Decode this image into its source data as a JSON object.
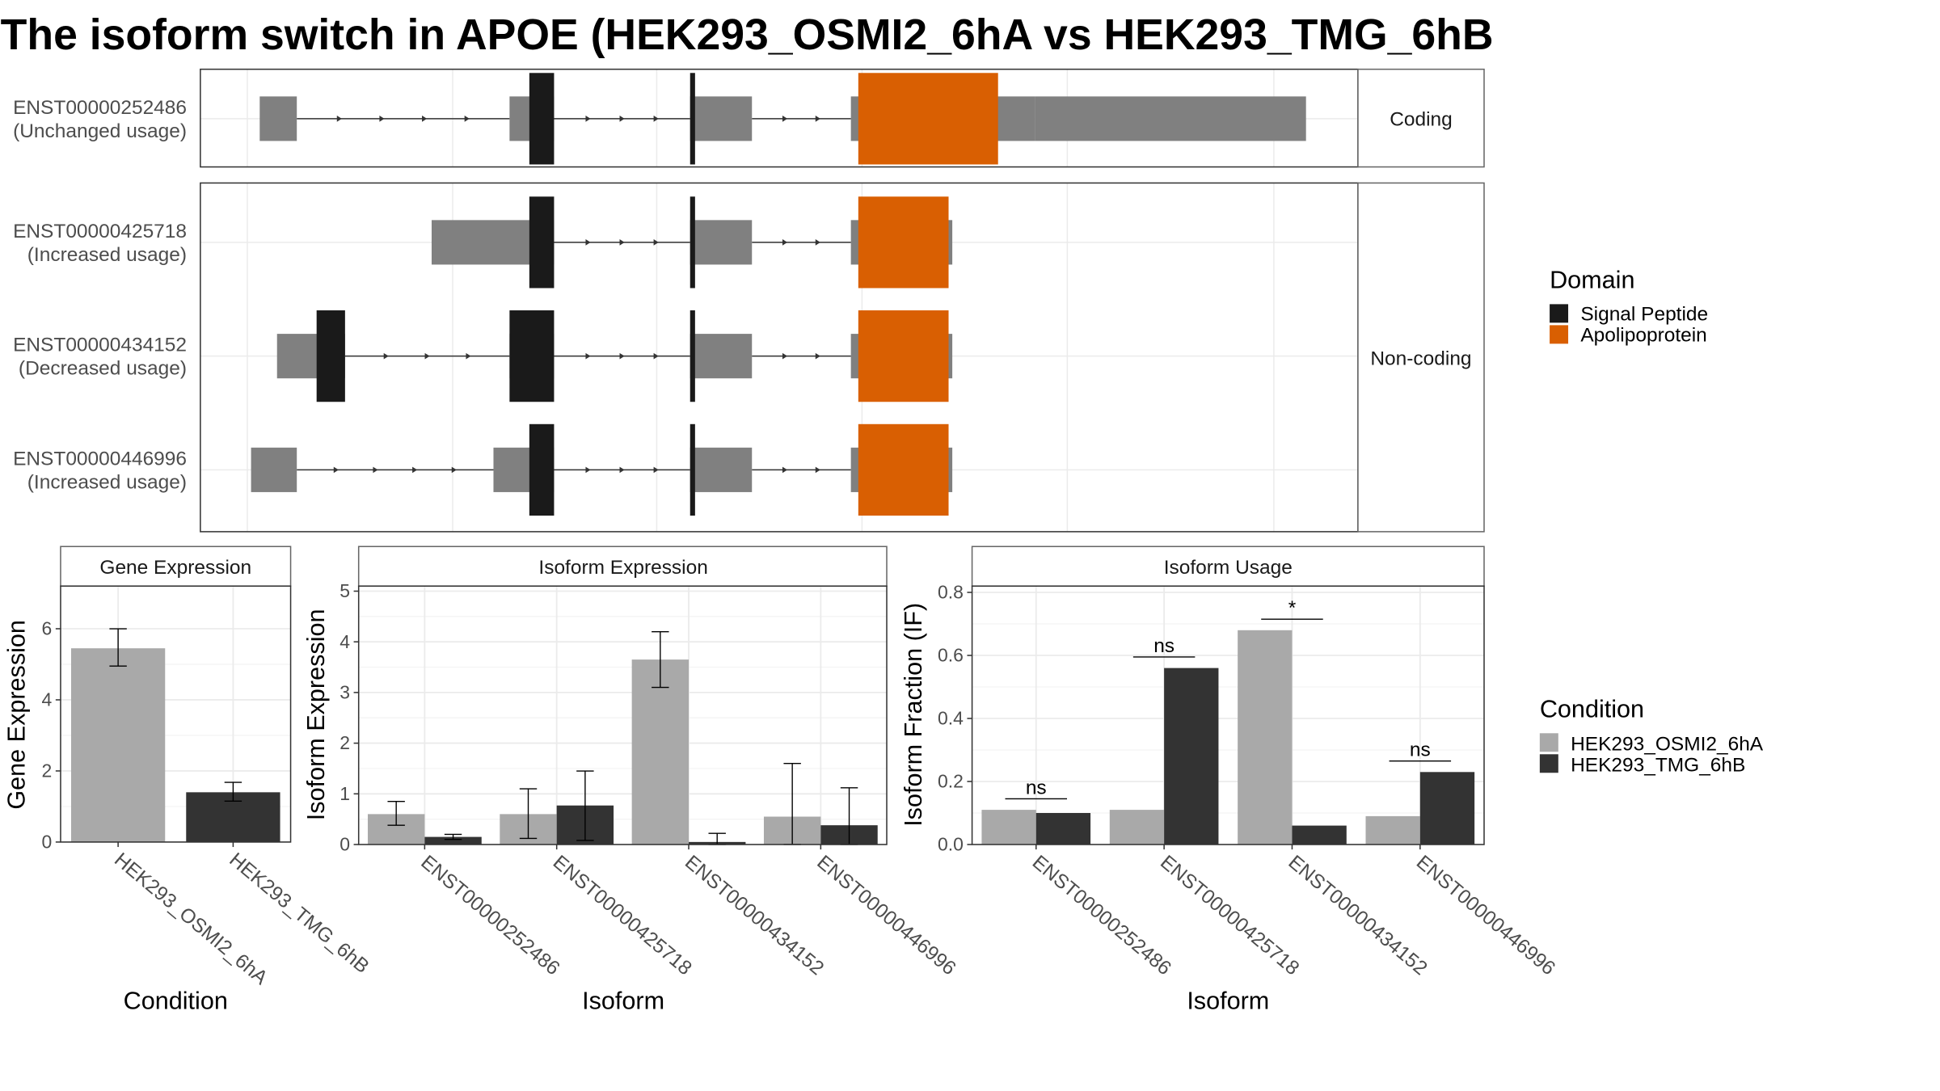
{
  "title": "The isoform switch in APOE (HEK293_OSMI2_6hA vs HEK293_TMG_6hB",
  "colors": {
    "signal_peptide": "#1a1a1a",
    "apolipoprotein": "#d95f02",
    "exon": "#808080",
    "cond_a": "#a9a9a9",
    "cond_b": "#333333"
  },
  "transcripts": {
    "facets": [
      {
        "label": "Coding",
        "isoforms": [
          0
        ]
      },
      {
        "label": "Non-coding",
        "isoforms": [
          1,
          2,
          3
        ]
      }
    ],
    "isoforms": [
      {
        "id": "ENST00000252486",
        "usage": "(Unchanged usage)",
        "exons": [
          [
            210,
            240
          ],
          [
            412,
            448
          ],
          [
            558,
            608
          ],
          [
            688,
            837
          ]
        ],
        "utr": [
          [
            837,
            1056
          ]
        ],
        "domains": [
          {
            "type": "signal_peptide",
            "range": [
              428,
              448
            ]
          },
          {
            "type": "signal_peptide",
            "range": [
              558,
              562
            ]
          },
          {
            "type": "apolipoprotein",
            "range": [
              694,
              807
            ]
          }
        ]
      },
      {
        "id": "ENST00000425718",
        "usage": "(Increased usage)",
        "exons": [
          [
            349,
            448
          ],
          [
            558,
            608
          ],
          [
            688,
            770
          ]
        ],
        "utr": [],
        "domains": [
          {
            "type": "signal_peptide",
            "range": [
              428,
              448
            ]
          },
          {
            "type": "signal_peptide",
            "range": [
              558,
              562
            ]
          },
          {
            "type": "apolipoprotein",
            "range": [
              694,
              767
            ]
          }
        ]
      },
      {
        "id": "ENST00000434152",
        "usage": "(Decreased usage)",
        "exons": [
          [
            224,
            279
          ],
          [
            412,
            448
          ],
          [
            558,
            608
          ],
          [
            688,
            770
          ]
        ],
        "utr": [],
        "domains": [
          {
            "type": "signal_peptide",
            "range": [
              256,
              279
            ]
          },
          {
            "type": "signal_peptide",
            "range": [
              412,
              448
            ]
          },
          {
            "type": "signal_peptide",
            "range": [
              558,
              562
            ]
          },
          {
            "type": "apolipoprotein",
            "range": [
              694,
              767
            ]
          }
        ]
      },
      {
        "id": "ENST00000446996",
        "usage": "(Increased usage)",
        "exons": [
          [
            203,
            240
          ],
          [
            399,
            448
          ],
          [
            558,
            608
          ],
          [
            688,
            770
          ]
        ],
        "utr": [],
        "domains": [
          {
            "type": "signal_peptide",
            "range": [
              428,
              448
            ]
          },
          {
            "type": "signal_peptide",
            "range": [
              558,
              562
            ]
          },
          {
            "type": "apolipoprotein",
            "range": [
              694,
              767
            ]
          }
        ]
      }
    ]
  },
  "legends": {
    "domain": {
      "title": "Domain",
      "items": [
        {
          "label": "Signal Peptide",
          "color": "#1a1a1a"
        },
        {
          "label": "Apolipoprotein",
          "color": "#d95f02"
        }
      ]
    },
    "condition": {
      "title": "Condition",
      "items": [
        {
          "label": "HEK293_OSMI2_6hA",
          "color": "#a9a9a9"
        },
        {
          "label": "HEK293_TMG_6hB",
          "color": "#333333"
        }
      ]
    }
  },
  "chart_data": [
    {
      "type": "bar",
      "panel": "Gene Expression",
      "title": "Gene Expression",
      "xlabel": "Condition",
      "ylabel": "Gene Expression",
      "ylim": [
        0,
        7.2
      ],
      "yticks": [
        0,
        2,
        4,
        6
      ],
      "categories": [
        "HEK293_OSMI2_6hA",
        "HEK293_TMG_6hB"
      ],
      "values": [
        5.45,
        1.4
      ],
      "error": [
        [
          4.95,
          6.0
        ],
        [
          1.15,
          1.68
        ]
      ]
    },
    {
      "type": "bar",
      "panel": "Isoform Expression",
      "title": "Isoform Expression",
      "xlabel": "Isoform",
      "ylabel": "Isoform Expression",
      "ylim": [
        0,
        5.1
      ],
      "yticks": [
        0,
        1,
        2,
        3,
        4,
        5
      ],
      "categories": [
        "ENST00000252486",
        "ENST00000425718",
        "ENST00000434152",
        "ENST00000446996"
      ],
      "series": [
        {
          "name": "HEK293_OSMI2_6hA",
          "values": [
            0.6,
            0.6,
            3.65,
            0.55
          ],
          "error": [
            [
              0.38,
              0.85
            ],
            [
              0.12,
              1.1
            ],
            [
              3.1,
              4.2
            ],
            [
              0.0,
              1.6
            ]
          ]
        },
        {
          "name": "HEK293_TMG_6hB",
          "values": [
            0.15,
            0.77,
            0.05,
            0.38
          ],
          "error": [
            [
              0.1,
              0.2
            ],
            [
              0.08,
              1.45
            ],
            [
              0.0,
              0.22
            ],
            [
              0.0,
              1.12
            ]
          ]
        }
      ]
    },
    {
      "type": "bar",
      "panel": "Isoform Usage",
      "title": "Isoform Usage",
      "xlabel": "Isoform",
      "ylabel": "Isoform Fraction (IF)",
      "ylim": [
        0,
        0.82
      ],
      "yticks": [
        0.0,
        0.2,
        0.4,
        0.6,
        0.8
      ],
      "categories": [
        "ENST00000252486",
        "ENST00000425718",
        "ENST00000434152",
        "ENST00000446996"
      ],
      "series": [
        {
          "name": "HEK293_OSMI2_6hA",
          "values": [
            0.11,
            0.11,
            0.68,
            0.09
          ]
        },
        {
          "name": "HEK293_TMG_6hB",
          "values": [
            0.1,
            0.56,
            0.06,
            0.23
          ]
        }
      ],
      "significance": [
        {
          "label": "ns",
          "y": 0.145
        },
        {
          "label": "ns",
          "y": 0.595
        },
        {
          "label": "*",
          "y": 0.715
        },
        {
          "label": "ns",
          "y": 0.265
        }
      ]
    }
  ]
}
